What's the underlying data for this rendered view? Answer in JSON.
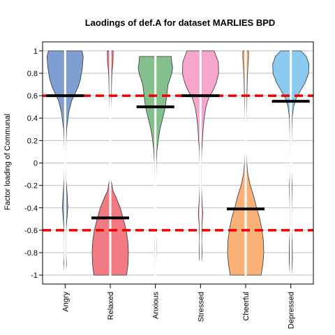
{
  "chart_data": {
    "type": "violin",
    "title": "Laodings of def.A for dataset MARLIES BPD",
    "ylabel": "Factor loading of Communal",
    "xlabel": "",
    "ylim": [
      -1.08,
      1.08
    ],
    "yticks": [
      1,
      0.8,
      0.6,
      0.4,
      0.2,
      0,
      -0.2,
      -0.4,
      -0.6,
      -0.8,
      -1
    ],
    "ytick_labels": [
      "1",
      "0.8",
      "0.6",
      "0.4",
      "0.2",
      "0",
      "-0.2",
      "-0.4",
      "-0.6",
      "-0.8",
      "-1"
    ],
    "grid": true,
    "reference_lines": [
      0.6,
      -0.6
    ],
    "reference_line_color": "#ee0000",
    "categories": [
      "Angry",
      "Relaxed",
      "Anxious",
      "Stressed",
      "Cheerful",
      "Depressed"
    ],
    "colors": [
      "#7f9fd3",
      "#f27a82",
      "#84c08c",
      "#f6a6cc",
      "#fbb077",
      "#8ccbf1"
    ],
    "means": [
      0.6,
      -0.49,
      0.5,
      0.6,
      -0.41,
      0.55
    ],
    "ranges": [
      [
        -0.96,
        1.0
      ],
      [
        -1.0,
        1.0
      ],
      [
        -1.0,
        0.95
      ],
      [
        -0.87,
        1.0
      ],
      [
        -1.0,
        1.0
      ],
      [
        -0.98,
        1.0
      ]
    ],
    "density_profiles": [
      [
        [
          1.0,
          0.92
        ],
        [
          0.95,
          1.0
        ],
        [
          0.85,
          0.95
        ],
        [
          0.75,
          0.85
        ],
        [
          0.68,
          0.72
        ],
        [
          0.62,
          0.55
        ],
        [
          0.55,
          0.35
        ],
        [
          0.45,
          0.2
        ],
        [
          0.3,
          0.08
        ],
        [
          0.15,
          0.04
        ],
        [
          0.0,
          0.03
        ],
        [
          -0.15,
          0.05
        ],
        [
          -0.3,
          0.12
        ],
        [
          -0.4,
          0.15
        ],
        [
          -0.5,
          0.1
        ],
        [
          -0.6,
          0.05
        ],
        [
          -0.8,
          0.04
        ],
        [
          -0.9,
          0.07
        ],
        [
          -0.96,
          0.04
        ]
      ],
      [
        [
          1.0,
          0.16
        ],
        [
          0.9,
          0.15
        ],
        [
          0.8,
          0.09
        ],
        [
          0.7,
          0.07
        ],
        [
          0.6,
          0.06
        ],
        [
          0.45,
          0.04
        ],
        [
          0.3,
          0.02
        ],
        [
          0.1,
          0.02
        ],
        [
          0.0,
          0.02
        ],
        [
          -0.15,
          0.04
        ],
        [
          -0.25,
          0.15
        ],
        [
          -0.3,
          0.3
        ],
        [
          -0.4,
          0.55
        ],
        [
          -0.5,
          0.72
        ],
        [
          -0.6,
          0.88
        ],
        [
          -0.7,
          0.97
        ],
        [
          -0.8,
          1.0
        ],
        [
          -0.9,
          0.98
        ],
        [
          -1.0,
          0.9
        ]
      ],
      [
        [
          0.95,
          0.88
        ],
        [
          0.9,
          0.9
        ],
        [
          0.85,
          0.95
        ],
        [
          0.8,
          0.9
        ],
        [
          0.7,
          0.7
        ],
        [
          0.6,
          0.62
        ],
        [
          0.5,
          0.55
        ],
        [
          0.4,
          0.4
        ],
        [
          0.3,
          0.25
        ],
        [
          0.2,
          0.15
        ],
        [
          0.1,
          0.08
        ],
        [
          0.0,
          0.05
        ],
        [
          -0.2,
          0.03
        ],
        [
          -0.4,
          0.03
        ],
        [
          -0.6,
          0.03
        ],
        [
          -0.75,
          0.05
        ],
        [
          -0.85,
          0.04
        ],
        [
          -1.0,
          0.03
        ]
      ],
      [
        [
          1.0,
          0.75
        ],
        [
          0.9,
          0.98
        ],
        [
          0.8,
          1.0
        ],
        [
          0.72,
          0.88
        ],
        [
          0.65,
          0.7
        ],
        [
          0.58,
          0.45
        ],
        [
          0.5,
          0.3
        ],
        [
          0.4,
          0.2
        ],
        [
          0.3,
          0.14
        ],
        [
          0.2,
          0.1
        ],
        [
          0.1,
          0.06
        ],
        [
          0.0,
          0.04
        ],
        [
          -0.2,
          0.04
        ],
        [
          -0.35,
          0.08
        ],
        [
          -0.45,
          0.12
        ],
        [
          -0.55,
          0.08
        ],
        [
          -0.7,
          0.06
        ],
        [
          -0.8,
          0.08
        ],
        [
          -0.87,
          0.06
        ]
      ],
      [
        [
          1.0,
          0.15
        ],
        [
          0.95,
          0.16
        ],
        [
          0.85,
          0.12
        ],
        [
          0.75,
          0.09
        ],
        [
          0.6,
          0.07
        ],
        [
          0.45,
          0.05
        ],
        [
          0.3,
          0.04
        ],
        [
          0.1,
          0.04
        ],
        [
          0.0,
          0.06
        ],
        [
          -0.1,
          0.12
        ],
        [
          -0.2,
          0.25
        ],
        [
          -0.3,
          0.45
        ],
        [
          -0.4,
          0.6
        ],
        [
          -0.5,
          0.78
        ],
        [
          -0.6,
          0.9
        ],
        [
          -0.7,
          0.98
        ],
        [
          -0.8,
          1.0
        ],
        [
          -0.9,
          0.95
        ],
        [
          -1.0,
          0.85
        ]
      ],
      [
        [
          1.0,
          0.55
        ],
        [
          0.95,
          0.85
        ],
        [
          0.88,
          1.0
        ],
        [
          0.8,
          0.98
        ],
        [
          0.72,
          0.8
        ],
        [
          0.65,
          0.55
        ],
        [
          0.58,
          0.3
        ],
        [
          0.5,
          0.15
        ],
        [
          0.4,
          0.07
        ],
        [
          0.2,
          0.04
        ],
        [
          0.0,
          0.03
        ],
        [
          -0.1,
          0.04
        ],
        [
          -0.2,
          0.07
        ],
        [
          -0.3,
          0.06
        ],
        [
          -0.45,
          0.04
        ],
        [
          -0.6,
          0.04
        ],
        [
          -0.7,
          0.07
        ],
        [
          -0.85,
          0.09
        ],
        [
          -0.98,
          0.05
        ]
      ]
    ]
  }
}
